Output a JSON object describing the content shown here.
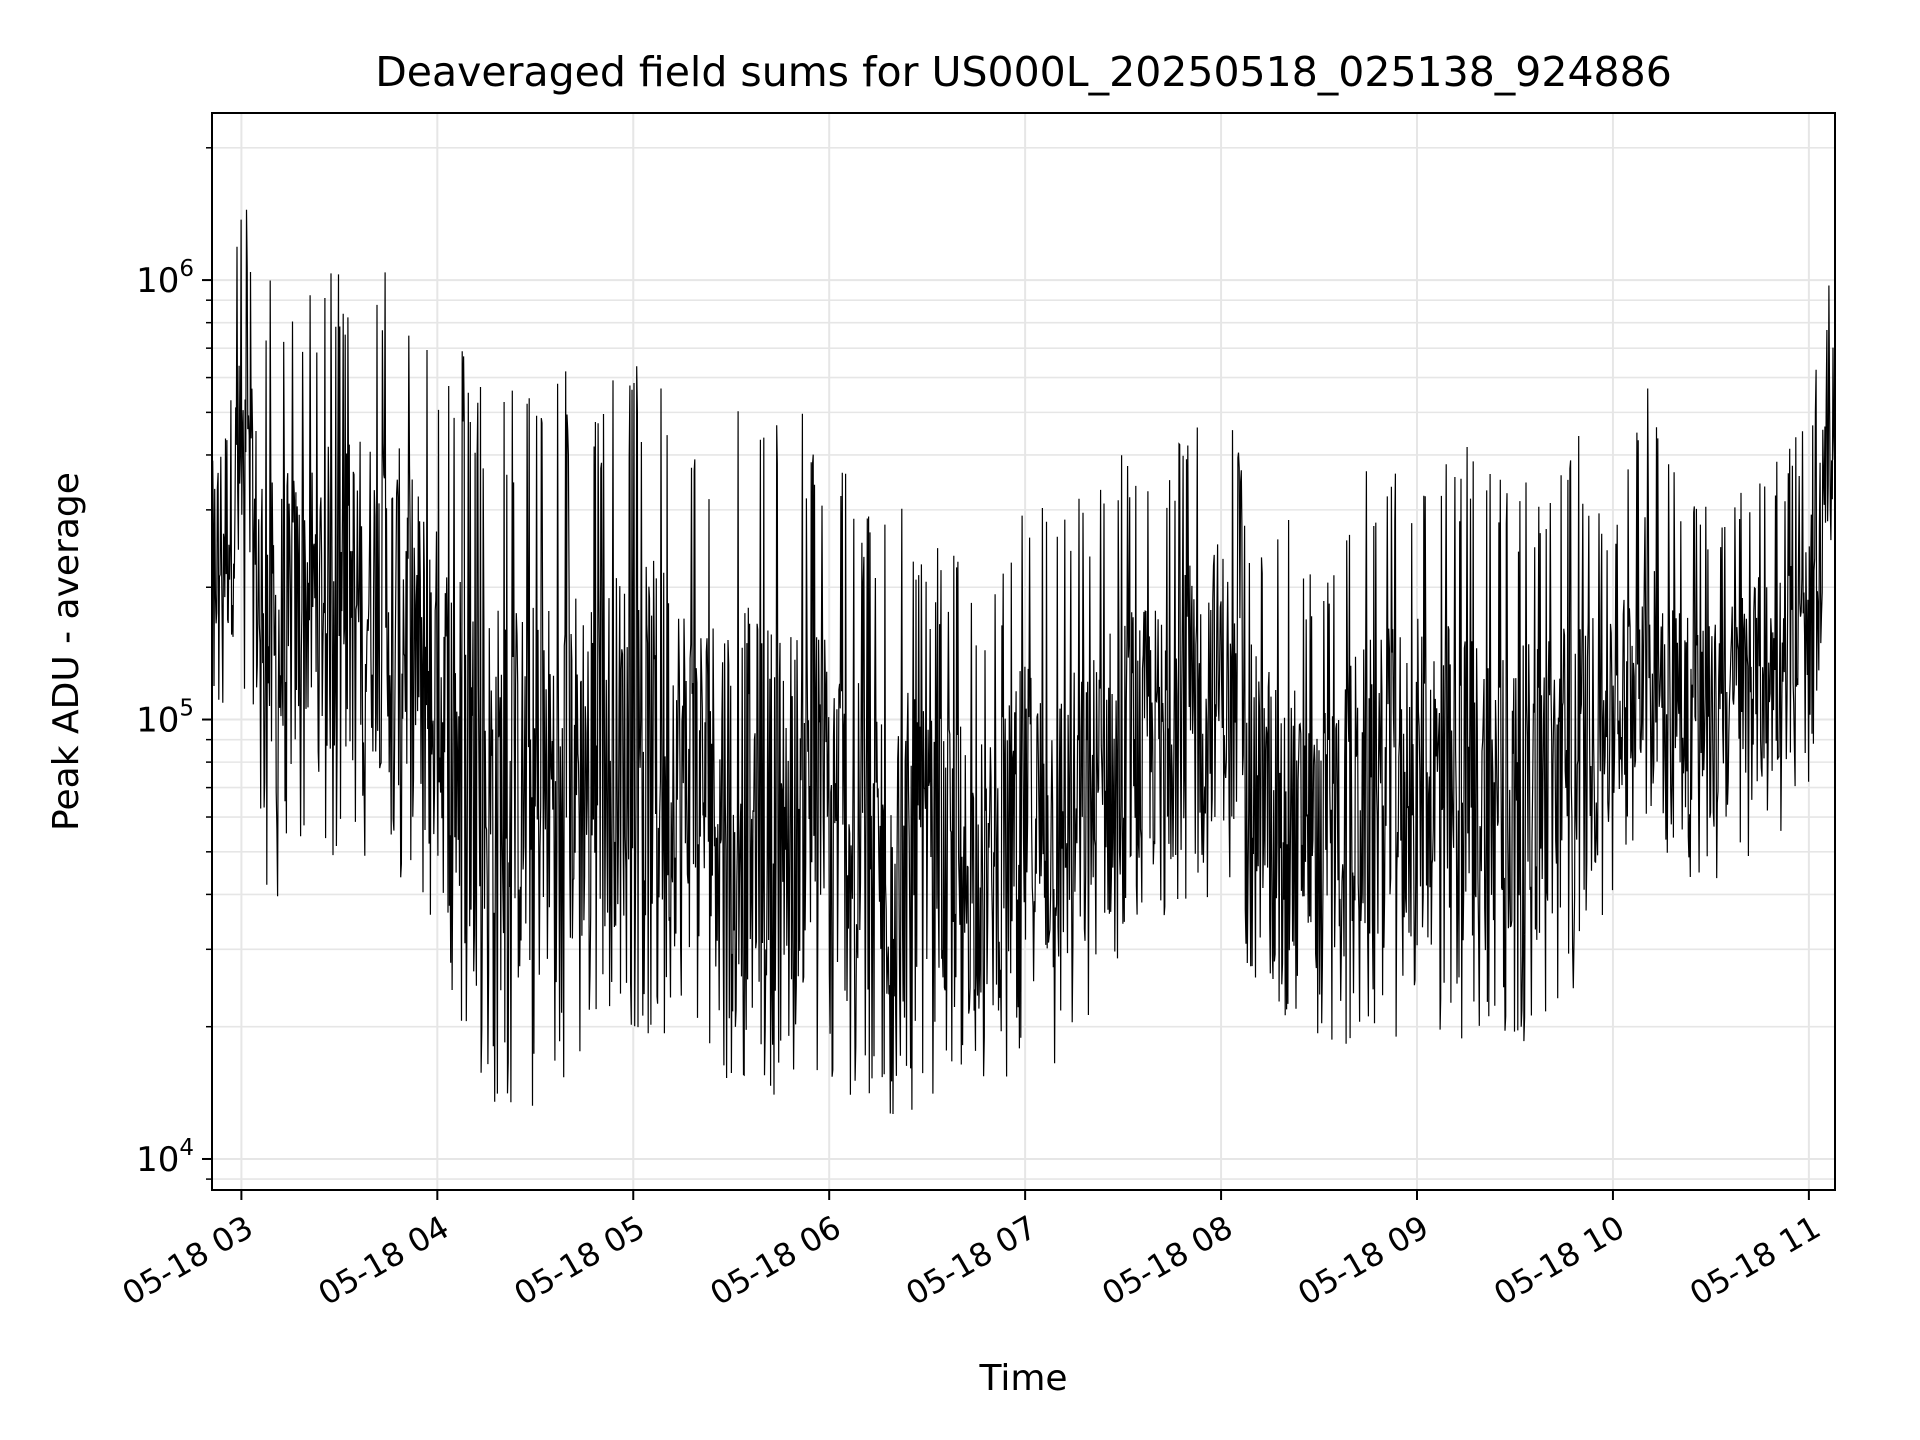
{
  "chart_data": {
    "type": "line",
    "title": "Deaveraged field sums for US000L_20250518_025138_924886",
    "xlabel": "Time",
    "ylabel": "Peak ADU - average",
    "y_scale": "log",
    "xlim": [
      "2025-05-18 02:51",
      "2025-05-18 11:08"
    ],
    "ylim": [
      8500,
      2400000
    ],
    "grid": true,
    "line_color": "#000000",
    "grid_color": "#e6e6e6",
    "x_ticks": [
      {
        "value": "2025-05-18 03:00",
        "label": "05-18 03"
      },
      {
        "value": "2025-05-18 04:00",
        "label": "05-18 04"
      },
      {
        "value": "2025-05-18 05:00",
        "label": "05-18 05"
      },
      {
        "value": "2025-05-18 06:00",
        "label": "05-18 06"
      },
      {
        "value": "2025-05-18 07:00",
        "label": "05-18 07"
      },
      {
        "value": "2025-05-18 08:00",
        "label": "05-18 08"
      },
      {
        "value": "2025-05-18 09:00",
        "label": "05-18 09"
      },
      {
        "value": "2025-05-18 10:00",
        "label": "05-18 10"
      },
      {
        "value": "2025-05-18 11:00",
        "label": "05-18 11"
      }
    ],
    "y_ticks": [
      {
        "value": 10000,
        "base": "10",
        "exp": "4"
      },
      {
        "value": 100000,
        "base": "10",
        "exp": "5"
      },
      {
        "value": 1000000,
        "base": "10",
        "exp": "6"
      }
    ],
    "series": [
      {
        "x": [
          "2025-05-18 02:51",
          "2025-05-18 03:00",
          "2025-05-18 03:10",
          "2025-05-18 03:20",
          "2025-05-18 03:30",
          "2025-05-18 03:40",
          "2025-05-18 03:50",
          "2025-05-18 04:00",
          "2025-05-18 04:10",
          "2025-05-18 04:20",
          "2025-05-18 04:30",
          "2025-05-18 04:40",
          "2025-05-18 04:50",
          "2025-05-18 05:00",
          "2025-05-18 05:10",
          "2025-05-18 05:20",
          "2025-05-18 05:30",
          "2025-05-18 05:40",
          "2025-05-18 05:50",
          "2025-05-18 06:00",
          "2025-05-18 06:10",
          "2025-05-18 06:20",
          "2025-05-18 06:30",
          "2025-05-18 06:40",
          "2025-05-18 06:50",
          "2025-05-18 07:00",
          "2025-05-18 07:10",
          "2025-05-18 07:20",
          "2025-05-18 07:30",
          "2025-05-18 07:40",
          "2025-05-18 07:50",
          "2025-05-18 08:00",
          "2025-05-18 08:10",
          "2025-05-18 08:20",
          "2025-05-18 08:30",
          "2025-05-18 08:40",
          "2025-05-18 08:50",
          "2025-05-18 09:00",
          "2025-05-18 09:10",
          "2025-05-18 09:20",
          "2025-05-18 09:30",
          "2025-05-18 09:40",
          "2025-05-18 09:50",
          "2025-05-18 10:00",
          "2025-05-18 10:10",
          "2025-05-18 10:20",
          "2025-05-18 10:30",
          "2025-05-18 10:40",
          "2025-05-18 10:50",
          "2025-05-18 11:00",
          "2025-05-18 11:08"
        ],
        "low": [
          95000,
          110000,
          30000,
          60000,
          45000,
          50000,
          40000,
          25000,
          14000,
          13000,
          13000,
          15000,
          20000,
          20000,
          18000,
          17000,
          15000,
          14000,
          14000,
          14000,
          13000,
          12000,
          13000,
          13000,
          14000,
          16000,
          16000,
          17000,
          25000,
          30000,
          35000,
          40000,
          25000,
          20000,
          18000,
          18000,
          19000,
          18000,
          18000,
          19000,
          18000,
          20000,
          25000,
          40000,
          60000,
          45000,
          40000,
          45000,
          55000,
          60000,
          300000
        ],
        "high": [
          700000,
          1600000,
          1000000,
          900000,
          1200000,
          1200000,
          1100000,
          800000,
          700000,
          600000,
          600000,
          650000,
          600000,
          650000,
          700000,
          500000,
          600000,
          500000,
          500000,
          500000,
          300000,
          350000,
          250000,
          250000,
          200000,
          350000,
          300000,
          350000,
          450000,
          400000,
          500000,
          600000,
          300000,
          300000,
          200000,
          350000,
          400000,
          450000,
          450000,
          400000,
          350000,
          400000,
          450000,
          300000,
          600000,
          400000,
          300000,
          400000,
          400000,
          500000,
          1200000
        ]
      }
    ]
  }
}
